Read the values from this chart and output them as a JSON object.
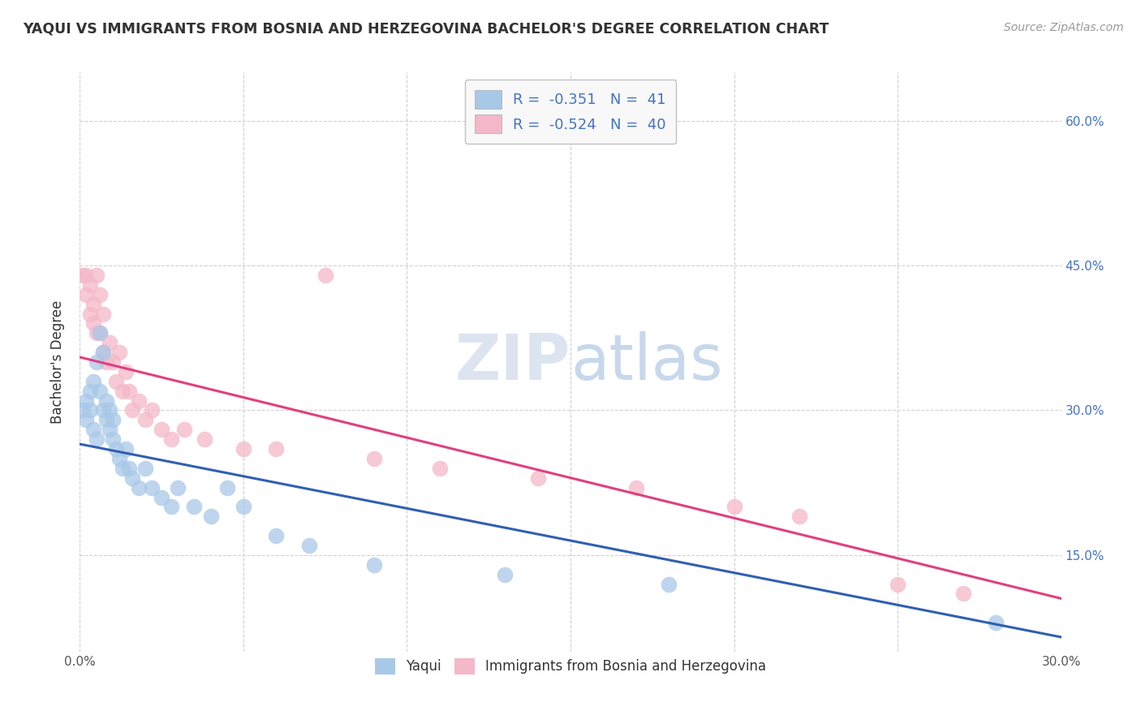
{
  "title": "YAQUI VS IMMIGRANTS FROM BOSNIA AND HERZEGOVINA BACHELOR'S DEGREE CORRELATION CHART",
  "source": "Source: ZipAtlas.com",
  "ylabel": "Bachelor's Degree",
  "watermark": "ZIPatlas",
  "legend_label_1": "R =  -0.351   N =  41",
  "legend_label_2": "R =  -0.524   N =  40",
  "xmin": 0.0,
  "xmax": 0.3,
  "ymin": 0.05,
  "ymax": 0.65,
  "yticks": [
    0.15,
    0.3,
    0.45,
    0.6
  ],
  "ytick_labels": [
    "15.0%",
    "30.0%",
    "45.0%",
    "60.0%"
  ],
  "xticks": [
    0.0,
    0.05,
    0.1,
    0.15,
    0.2,
    0.25,
    0.3
  ],
  "xtick_labels": [
    "0.0%",
    "",
    "",
    "",
    "",
    "",
    "30.0%"
  ],
  "blue_color": "#a8c8e8",
  "pink_color": "#f4b8c8",
  "line_blue": "#3060b0",
  "line_pink": "#e04080",
  "blue_scatter_x": [
    0.001,
    0.002,
    0.002,
    0.003,
    0.003,
    0.004,
    0.004,
    0.005,
    0.005,
    0.006,
    0.006,
    0.007,
    0.007,
    0.008,
    0.008,
    0.009,
    0.009,
    0.01,
    0.01,
    0.011,
    0.012,
    0.013,
    0.014,
    0.015,
    0.016,
    0.018,
    0.02,
    0.022,
    0.025,
    0.028,
    0.03,
    0.035,
    0.04,
    0.045,
    0.05,
    0.06,
    0.07,
    0.09,
    0.13,
    0.18,
    0.28
  ],
  "blue_scatter_y": [
    0.3,
    0.29,
    0.31,
    0.3,
    0.32,
    0.28,
    0.33,
    0.27,
    0.35,
    0.32,
    0.38,
    0.3,
    0.36,
    0.29,
    0.31,
    0.28,
    0.3,
    0.27,
    0.29,
    0.26,
    0.25,
    0.24,
    0.26,
    0.24,
    0.23,
    0.22,
    0.24,
    0.22,
    0.21,
    0.2,
    0.22,
    0.2,
    0.19,
    0.22,
    0.2,
    0.17,
    0.16,
    0.14,
    0.13,
    0.12,
    0.08
  ],
  "pink_scatter_x": [
    0.001,
    0.002,
    0.002,
    0.003,
    0.003,
    0.004,
    0.004,
    0.005,
    0.005,
    0.006,
    0.006,
    0.007,
    0.007,
    0.008,
    0.009,
    0.01,
    0.011,
    0.012,
    0.013,
    0.014,
    0.015,
    0.016,
    0.018,
    0.02,
    0.022,
    0.025,
    0.028,
    0.032,
    0.038,
    0.05,
    0.06,
    0.075,
    0.09,
    0.11,
    0.14,
    0.17,
    0.2,
    0.22,
    0.25,
    0.27
  ],
  "pink_scatter_y": [
    0.44,
    0.42,
    0.44,
    0.4,
    0.43,
    0.39,
    0.41,
    0.38,
    0.44,
    0.42,
    0.38,
    0.4,
    0.36,
    0.35,
    0.37,
    0.35,
    0.33,
    0.36,
    0.32,
    0.34,
    0.32,
    0.3,
    0.31,
    0.29,
    0.3,
    0.28,
    0.27,
    0.28,
    0.27,
    0.26,
    0.26,
    0.44,
    0.25,
    0.24,
    0.23,
    0.22,
    0.2,
    0.19,
    0.12,
    0.11
  ],
  "blue_line_x": [
    0.0,
    0.3
  ],
  "blue_line_y": [
    0.265,
    0.065
  ],
  "pink_line_x": [
    0.0,
    0.3
  ],
  "pink_line_y": [
    0.355,
    0.105
  ],
  "grid_color": "#d0d0d0",
  "bg_color": "#ffffff",
  "title_color": "#333333",
  "axis_color": "#4472c4",
  "watermark_color": "#dce4f0",
  "legend_box_color": "#f8f8f8",
  "legend_border_color": "#c0c0c0",
  "tick_label_color_x": "#555555",
  "tick_label_color_y": "#4472c4"
}
